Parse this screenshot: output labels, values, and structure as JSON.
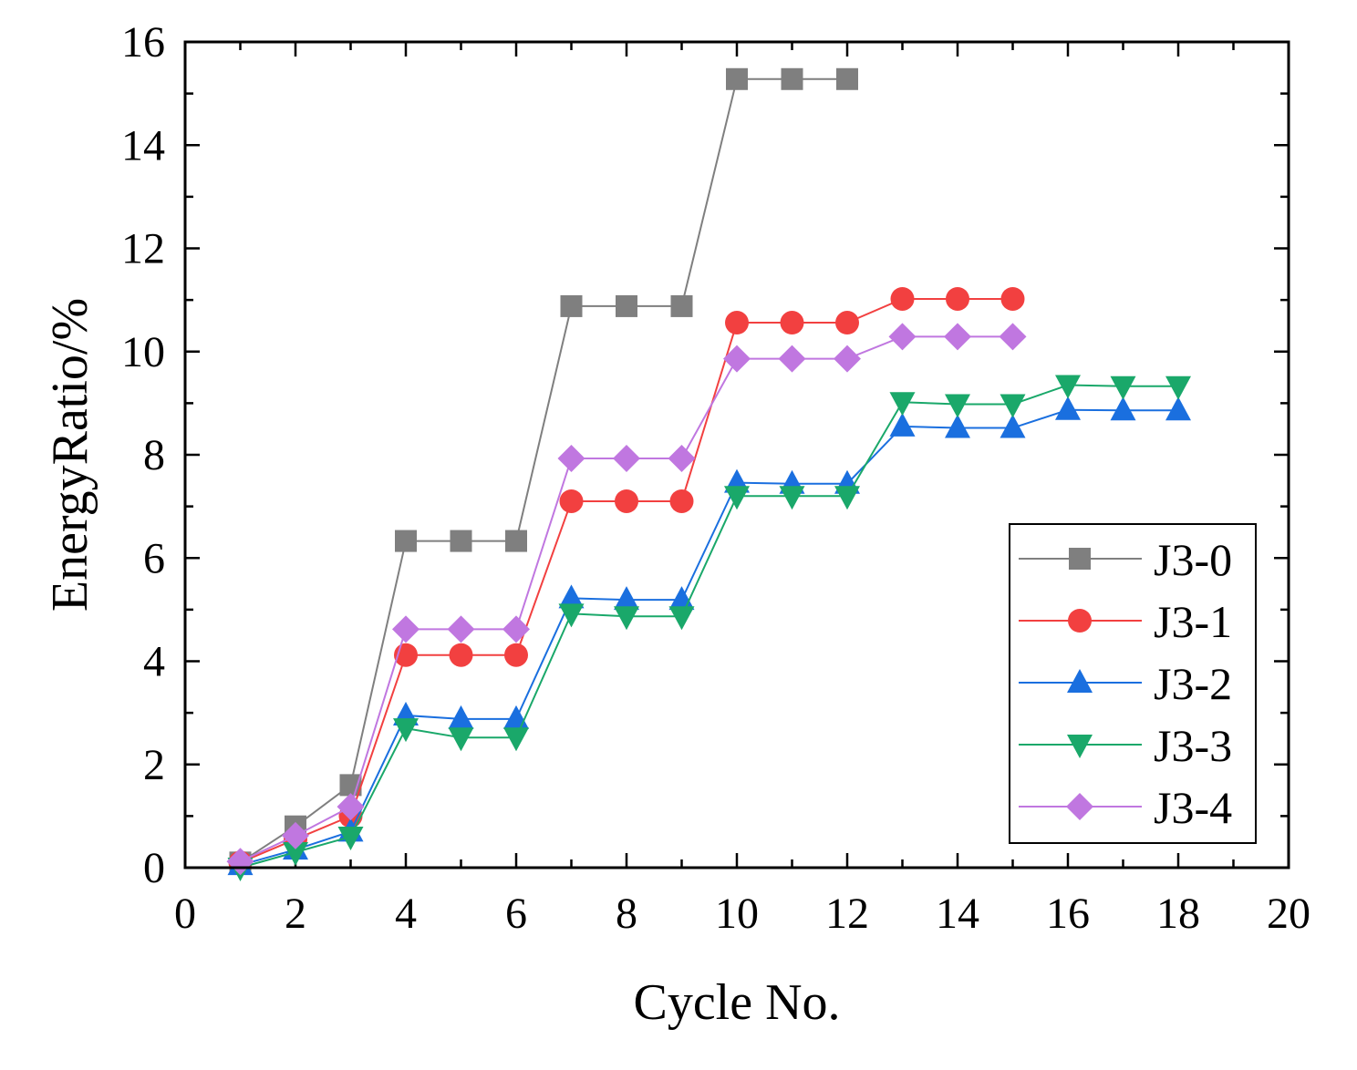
{
  "chart_data": {
    "type": "line",
    "title": "",
    "xlabel": "Cycle No.",
    "ylabel": "EnergyRatio/%",
    "xlim": [
      0,
      20
    ],
    "ylim": [
      0,
      16
    ],
    "xticks": [
      0,
      2,
      4,
      6,
      8,
      10,
      12,
      14,
      16,
      18,
      20
    ],
    "yticks": [
      0,
      2,
      4,
      6,
      8,
      10,
      12,
      14,
      16
    ],
    "grid": false,
    "legend_position": "bottom-right",
    "series": [
      {
        "name": "J3-0",
        "color": "#7f7f7f",
        "marker": "square",
        "x": [
          1,
          2,
          3,
          4,
          5,
          6,
          7,
          8,
          9,
          10,
          11,
          12
        ],
        "y": [
          0.1,
          0.8,
          1.6,
          6.33,
          6.33,
          6.33,
          10.88,
          10.88,
          10.88,
          15.28,
          15.28,
          15.28
        ]
      },
      {
        "name": "J3-1",
        "color": "#f24040",
        "marker": "circle",
        "x": [
          1,
          2,
          3,
          4,
          5,
          6,
          7,
          8,
          9,
          10,
          11,
          12,
          13,
          14,
          15
        ],
        "y": [
          0.1,
          0.55,
          1.0,
          4.12,
          4.12,
          4.12,
          7.1,
          7.1,
          7.1,
          10.56,
          10.56,
          10.56,
          11.02,
          11.02,
          11.02
        ]
      },
      {
        "name": "J3-2",
        "color": "#1a6fdf",
        "marker": "triangle-up",
        "x": [
          1,
          2,
          3,
          4,
          5,
          6,
          7,
          8,
          9,
          10,
          11,
          12,
          13,
          14,
          15,
          16,
          17,
          18
        ],
        "y": [
          0.05,
          0.35,
          0.7,
          2.95,
          2.88,
          2.88,
          5.22,
          5.19,
          5.19,
          7.46,
          7.44,
          7.44,
          8.55,
          8.52,
          8.52,
          8.87,
          8.86,
          8.86
        ]
      },
      {
        "name": "J3-3",
        "color": "#1aa86a",
        "marker": "triangle-down",
        "x": [
          1,
          2,
          3,
          4,
          5,
          6,
          7,
          8,
          9,
          10,
          11,
          12,
          13,
          14,
          15,
          16,
          17,
          18
        ],
        "y": [
          0.0,
          0.3,
          0.6,
          2.7,
          2.52,
          2.52,
          4.92,
          4.87,
          4.87,
          7.2,
          7.2,
          7.2,
          9.02,
          8.98,
          8.98,
          9.35,
          9.33,
          9.33
        ]
      },
      {
        "name": "J3-4",
        "color": "#c077e0",
        "marker": "diamond",
        "x": [
          1,
          2,
          3,
          4,
          5,
          6,
          7,
          8,
          9,
          10,
          11,
          12,
          13,
          14,
          15
        ],
        "y": [
          0.12,
          0.62,
          1.18,
          4.62,
          4.62,
          4.62,
          7.93,
          7.93,
          7.93,
          9.86,
          9.86,
          9.86,
          10.29,
          10.29,
          10.29
        ]
      }
    ]
  }
}
